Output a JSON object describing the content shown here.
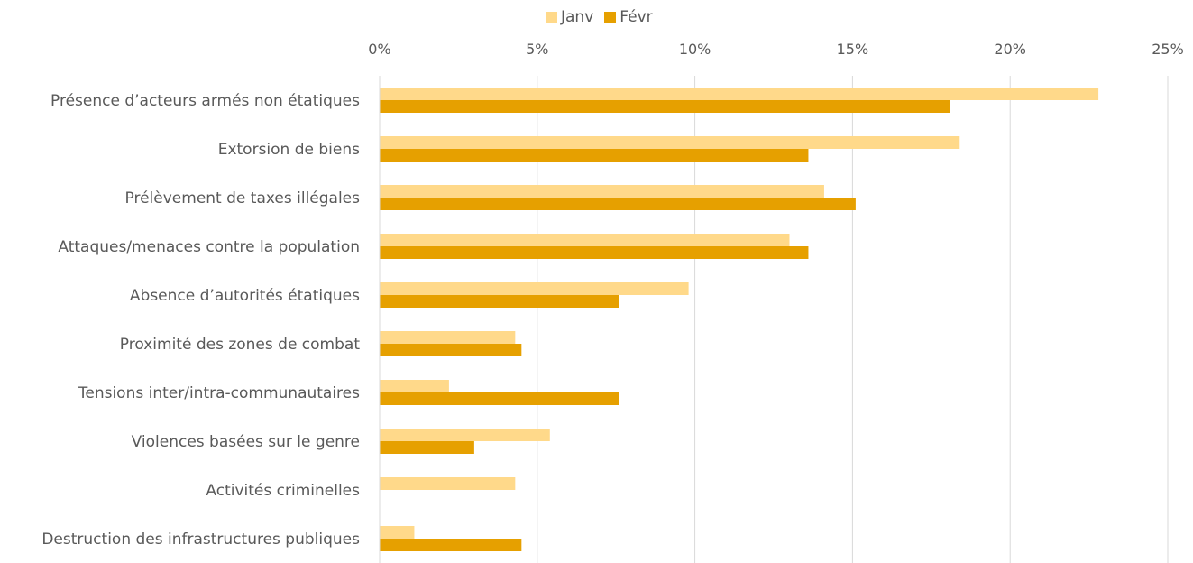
{
  "chart_data": {
    "type": "bar",
    "orientation": "horizontal",
    "categories": [
      "Présence d’acteurs armés non étatiques",
      "Extorsion de biens",
      "Prélèvement de taxes illégales",
      "Attaques/menaces contre la population",
      "Absence d’autorités étatiques",
      "Proximité des zones de combat",
      "Tensions inter/intra-communautaires",
      "Violences basées sur le genre",
      "Activités criminelles",
      "Destruction des infrastructures publiques"
    ],
    "series": [
      {
        "name": "Janv",
        "color": "#FFD98A",
        "values": [
          22.8,
          18.4,
          14.1,
          13.0,
          9.8,
          4.3,
          2.2,
          5.4,
          4.3,
          1.1
        ]
      },
      {
        "name": "Févr",
        "color": "#E6A000",
        "values": [
          18.1,
          13.6,
          15.1,
          13.6,
          7.6,
          4.5,
          7.6,
          3.0,
          0,
          4.5
        ]
      }
    ],
    "xlim": [
      0,
      25
    ],
    "xticks": [
      "0%",
      "5%",
      "10%",
      "15%",
      "20%",
      "25%"
    ],
    "xtick_values": [
      0,
      5,
      10,
      15,
      20,
      25
    ],
    "grid": true,
    "legend_position": "top-center",
    "xaxis_position": "top"
  }
}
